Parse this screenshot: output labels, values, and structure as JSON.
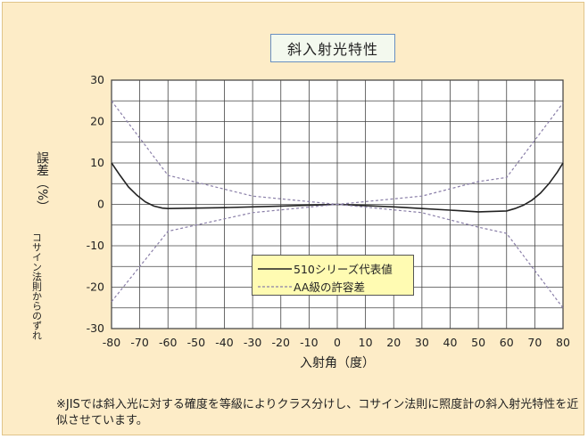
{
  "title": "斜入射光特性",
  "ylabel_main": "誤差（%）",
  "ylabel_sub": "コサイン法則からのずれ",
  "xlabel": "入射角（度）",
  "legend": {
    "series_1": "510シリーズ代表値",
    "series_2": "AA級の許容差"
  },
  "note": "※JISでは斜入光に対する確度を等級によりクラス分けし、コサイン法則に照度計の斜入射光特性を近似させています。",
  "chart_data": {
    "type": "line",
    "title": "斜入射光特性",
    "xlabel": "入射角（度）",
    "ylabel": "誤差（%）コサイン法則からのずれ",
    "x_ticks": [
      -80,
      -70,
      -60,
      -50,
      -40,
      -30,
      -20,
      -10,
      0,
      10,
      20,
      30,
      40,
      50,
      60,
      70,
      80
    ],
    "y_ticks": [
      -30,
      -20,
      -10,
      0,
      10,
      20,
      30
    ],
    "xlim": [
      -80,
      80
    ],
    "ylim": [
      -30,
      30
    ],
    "grid": true,
    "legend_position": "bottom-center",
    "series": [
      {
        "name": "510シリーズ代表値",
        "style": "solid",
        "color": "#222222",
        "x": [
          -80,
          -77,
          -74,
          -71,
          -68,
          -65,
          -62,
          -60,
          -50,
          -40,
          -30,
          -20,
          -10,
          0,
          10,
          20,
          30,
          40,
          50,
          60,
          63,
          66,
          69,
          72,
          75,
          78,
          80
        ],
        "y": [
          10,
          7,
          4.2,
          2.2,
          0.6,
          -0.4,
          -0.9,
          -1.0,
          -0.9,
          -0.8,
          -0.6,
          -0.4,
          -0.2,
          0,
          -0.3,
          -0.6,
          -1.0,
          -1.4,
          -1.8,
          -1.6,
          -1.0,
          -0.2,
          1.0,
          2.7,
          5.0,
          7.8,
          10
        ]
      },
      {
        "name": "AA級の許容差",
        "style": "dashed",
        "color": "#8a7fa8",
        "x": [
          -80,
          -60,
          -30,
          0,
          30,
          50,
          60,
          80
        ],
        "y": [
          25,
          7,
          2,
          0,
          2,
          5.5,
          6.5,
          24.5
        ]
      },
      {
        "name": "AA級の許容差",
        "style": "dashed",
        "color": "#8a7fa8",
        "x": [
          -80,
          -60,
          -30,
          0,
          30,
          50,
          60,
          80
        ],
        "y": [
          -23.5,
          -6.5,
          -2,
          0,
          -2,
          -5.5,
          -7,
          -25
        ]
      }
    ]
  }
}
